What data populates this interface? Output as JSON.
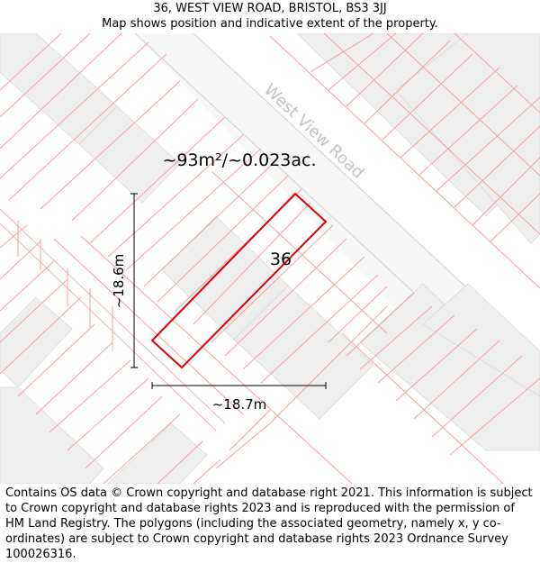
{
  "header": {
    "address": "36, WEST VIEW ROAD, BRISTOL, BS3 3JJ",
    "subtitle": "Map shows position and indicative extent of the property."
  },
  "map": {
    "road_label": "West View Road",
    "area_label": "~93m²/~0.023ac.",
    "plot_number": "36",
    "height_label": "~18.6m",
    "width_label": "~18.7m",
    "colors": {
      "plot_outline": "#e00000",
      "parcel_lines": "#f2a0a0",
      "building_fill": "#f0f0f0",
      "road_fill": "#f7f7f7",
      "road_edge": "#cfcfcf",
      "measure_line": "#000000"
    }
  },
  "footer": {
    "copyright": "Contains OS data © Crown copyright and database right 2021. This information is subject to Crown copyright and database rights 2023 and is reproduced with the permission of HM Land Registry. The polygons (including the associated geometry, namely x, y co-ordinates) are subject to Crown copyright and database rights 2023 Ordnance Survey 100026316."
  }
}
